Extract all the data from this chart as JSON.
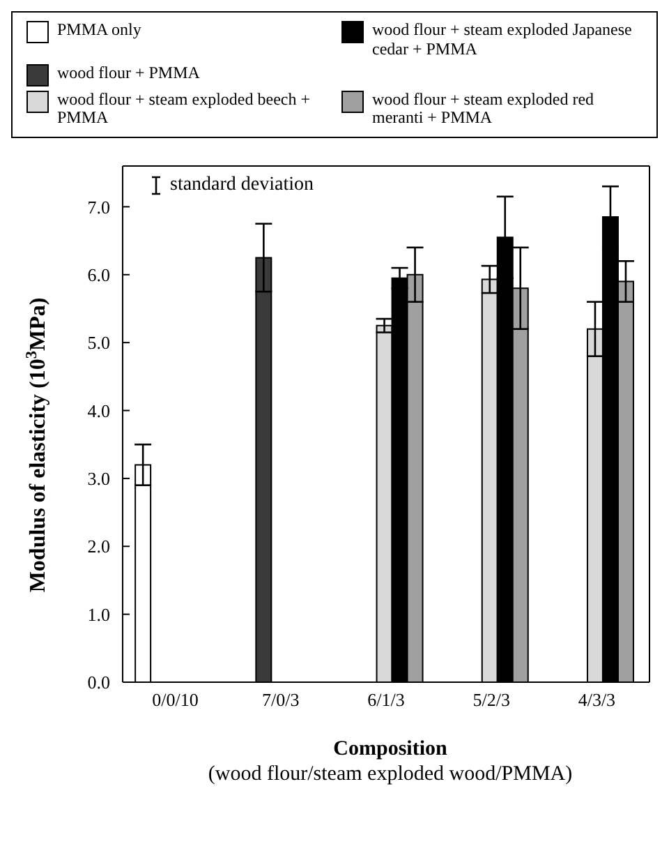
{
  "chart_data": {
    "type": "bar",
    "xlabel": "Composition\n(wood flour/steam exploded wood/PMMA)",
    "ylabel": "Modulus of elasticity (10$^{3}$MPa)",
    "categories": [
      "0/0/10",
      "7/0/3",
      "6/1/3",
      "5/2/3",
      "4/3/3"
    ],
    "series": [
      {
        "name": "PMMA only",
        "color": "#ffffff",
        "values": [
          3.2,
          null,
          null,
          null,
          null
        ],
        "errors": [
          0.3,
          null,
          null,
          null,
          null
        ]
      },
      {
        "name": "wood flour + PMMA",
        "color": "#3a3a3a",
        "values": [
          null,
          6.25,
          null,
          null,
          null
        ],
        "errors": [
          null,
          0.5,
          null,
          null,
          null
        ]
      },
      {
        "name": "wood flour + steam exploded beech + PMMA",
        "color": "#d9d9d9",
        "values": [
          null,
          null,
          5.25,
          5.93,
          5.2
        ],
        "errors": [
          null,
          null,
          0.1,
          0.2,
          0.4
        ]
      },
      {
        "name": "wood flour + steam exploded Japanese cedar + PMMA",
        "color": "#000000",
        "values": [
          null,
          null,
          5.95,
          6.55,
          6.85
        ],
        "errors": [
          null,
          null,
          0.15,
          0.6,
          0.45
        ]
      },
      {
        "name": "wood flour + steam exploded red meranti + PMMA",
        "color": "#a0a0a0",
        "values": [
          null,
          null,
          6.0,
          5.8,
          5.9
        ],
        "errors": [
          null,
          null,
          0.4,
          0.6,
          0.3
        ]
      }
    ],
    "ylim": [
      0,
      7.6
    ],
    "yticks": [
      {
        "value": 0,
        "label": "0.0"
      },
      {
        "value": 1,
        "label": "1.0"
      },
      {
        "value": 2,
        "label": "2.0"
      },
      {
        "value": 3,
        "label": "3.0"
      },
      {
        "value": 4,
        "label": "4.0"
      },
      {
        "value": 5,
        "label": "5.0"
      },
      {
        "value": 6,
        "label": "6.0"
      },
      {
        "value": 7,
        "label": "7.0"
      }
    ],
    "annotations": [
      "standard deviation"
    ],
    "legend": "top",
    "grid": false
  }
}
